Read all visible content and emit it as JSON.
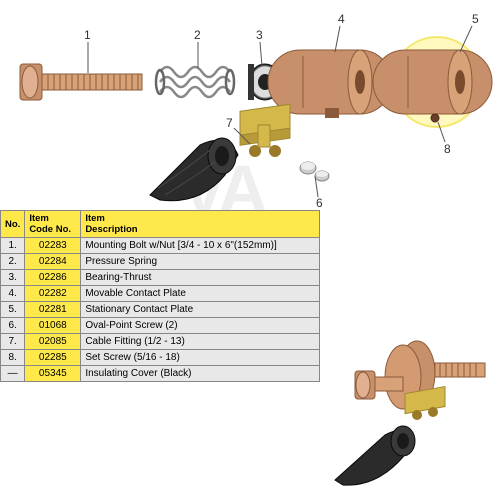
{
  "callouts": {
    "1": "1",
    "2": "2",
    "3": "3",
    "4": "4",
    "5": "5",
    "6": "6",
    "7": "7",
    "8": "8"
  },
  "table": {
    "headers": {
      "no": "No.",
      "code": "Item\nCode No.",
      "desc": "Item\nDescription"
    },
    "rows": [
      {
        "no": "1.",
        "code": "02283",
        "desc": "Mounting Bolt w/Nut [3/4 - 10 x 6\"(152mm)]"
      },
      {
        "no": "2.",
        "code": "02284",
        "desc": "Pressure Spring"
      },
      {
        "no": "3.",
        "code": "02286",
        "desc": "Bearing-Thrust"
      },
      {
        "no": "4.",
        "code": "02282",
        "desc": "Movable Contact Plate"
      },
      {
        "no": "5.",
        "code": "02281",
        "desc": "Stationary Contact Plate"
      },
      {
        "no": "6.",
        "code": "01068",
        "desc": "Oval-Point Screw (2)"
      },
      {
        "no": "7.",
        "code": "02085",
        "desc": "Cable Fitting (1/2 - 13)"
      },
      {
        "no": "8.",
        "code": "02285",
        "desc": "Set Screw (5/16 - 18)"
      },
      {
        "no": "—",
        "code": "05345",
        "desc": "Insulating Cover (Black)"
      }
    ]
  },
  "colors": {
    "copper": "#c8906a",
    "copperDark": "#8a5a3a",
    "steel": "#cccccc",
    "steelDark": "#888888",
    "brass": "#d4b84a",
    "black": "#2b2b2b",
    "highlight": "#fff9c0",
    "headerBg": "#ffe94a",
    "altBg": "#e8e8e8"
  }
}
